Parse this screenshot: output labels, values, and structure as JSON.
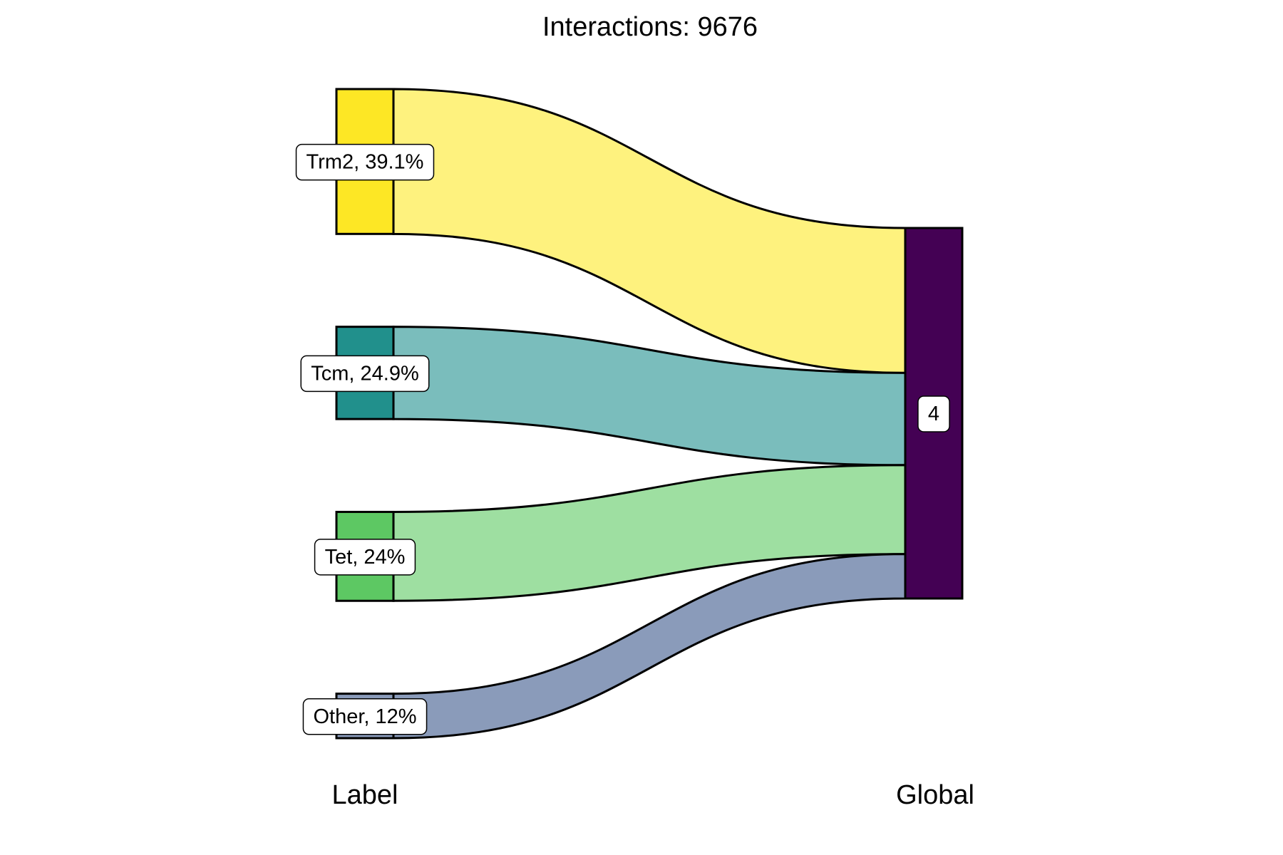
{
  "chart_data": {
    "type": "sankey",
    "title": "Interactions: 9676",
    "axes": [
      "Label",
      "Global"
    ],
    "nodes_left": [
      {
        "name": "Trm2",
        "label": "Trm2, 39.1%",
        "value": 39.1,
        "color": "#FDE725",
        "flow_color": "#FEF27E"
      },
      {
        "name": "Tcm",
        "label": "Tcm, 24.9%",
        "value": 24.9,
        "color": "#21908C",
        "flow_color": "#7ABDBC"
      },
      {
        "name": "Tet",
        "label": "Tet, 24%",
        "value": 24,
        "color": "#5DC863",
        "flow_color": "#9EDFA1"
      },
      {
        "name": "Other",
        "label": "Other, 12%",
        "value": 12,
        "color": "#8A9BBA",
        "flow_color": "#8A9BBA"
      }
    ],
    "nodes_right": [
      {
        "name": "4",
        "label": "4",
        "value": 100,
        "color": "#440154"
      }
    ],
    "flows": [
      {
        "from": "Trm2",
        "to": "4",
        "value": 39.1
      },
      {
        "from": "Tcm",
        "to": "4",
        "value": 24.9
      },
      {
        "from": "Tet",
        "to": "4",
        "value": 24
      },
      {
        "from": "Other",
        "to": "4",
        "value": 12
      }
    ]
  }
}
